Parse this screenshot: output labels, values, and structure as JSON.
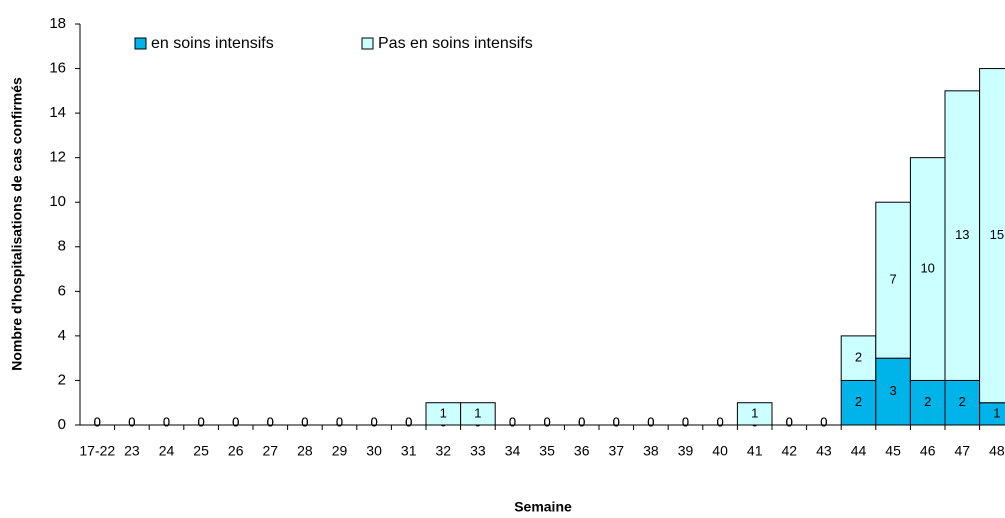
{
  "chart_data": {
    "type": "stacked_bar",
    "x_label": "Semaine",
    "y_label": "Nombre d'hospitalisations de cas confirmés",
    "categories": [
      "17-22",
      "23",
      "24",
      "25",
      "26",
      "27",
      "28",
      "29",
      "30",
      "31",
      "32",
      "33",
      "34",
      "35",
      "36",
      "37",
      "38",
      "39",
      "40",
      "41",
      "42",
      "43",
      "44",
      "45",
      "46",
      "47",
      "48"
    ],
    "series": [
      {
        "name": "en soins intensifs",
        "color": "#00b4ea",
        "values": [
          0,
          0,
          0,
          0,
          0,
          0,
          0,
          0,
          0,
          0,
          0,
          0,
          0,
          0,
          0,
          0,
          0,
          0,
          0,
          0,
          0,
          0,
          2,
          3,
          2,
          2,
          1
        ]
      },
      {
        "name": "Pas en soins intensifs",
        "color": "#ccffff",
        "values": [
          0,
          0,
          0,
          0,
          0,
          0,
          0,
          0,
          0,
          0,
          1,
          1,
          0,
          0,
          0,
          0,
          0,
          0,
          0,
          1,
          0,
          0,
          2,
          7,
          10,
          13,
          15
        ]
      }
    ],
    "ylim": [
      0,
      18
    ],
    "yticks": [
      0,
      2,
      4,
      6,
      8,
      10,
      12,
      14,
      16,
      18
    ],
    "legend": "top"
  }
}
